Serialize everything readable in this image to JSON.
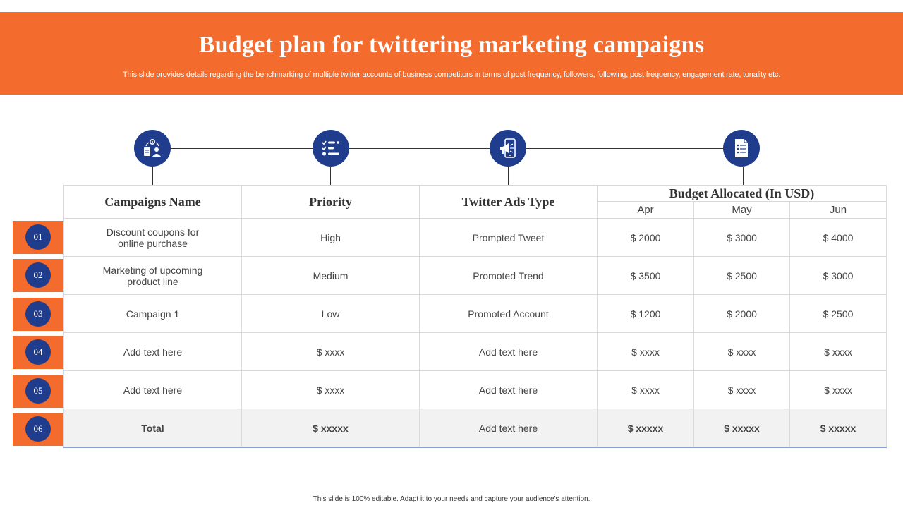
{
  "header": {
    "title": "Budget plan for twittering marketing campaigns",
    "subtitle": "This slide provides details regarding the benchmarking of multiple twitter accounts of business competitors in terms of post frequency, followers, following, post frequency, engagement rate, tonality etc."
  },
  "icons": [
    "team-gear-icon",
    "checklist-icon",
    "mobile-megaphone-icon",
    "document-list-icon"
  ],
  "table": {
    "headers": {
      "campaign": "Campaigns Name",
      "priority": "Priority",
      "ads_type": "Twitter Ads Type",
      "budget": "Budget Allocated (In USD)",
      "months": [
        "Apr",
        "May",
        "Jun"
      ]
    },
    "rows": [
      {
        "num": "01",
        "campaign_line1": "Discount coupons for",
        "campaign_line2": "online purchase",
        "priority": "High",
        "ads_type": "Prompted Tweet",
        "apr": "$ 2000",
        "may": "$ 3000",
        "jun": "$ 4000"
      },
      {
        "num": "02",
        "campaign_line1": "Marketing  of upcoming",
        "campaign_line2": "product line",
        "priority": "Medium",
        "ads_type": "Promoted Trend",
        "apr": "$ 3500",
        "may": "$ 2500",
        "jun": "$ 3000"
      },
      {
        "num": "03",
        "campaign_line1": "Campaign 1",
        "campaign_line2": "",
        "priority": "Low",
        "ads_type": "Promoted Account",
        "apr": "$ 1200",
        "may": "$ 2000",
        "jun": "$ 2500"
      },
      {
        "num": "04",
        "campaign_line1": "Add text here",
        "campaign_line2": "",
        "priority": "$ xxxx",
        "ads_type": "Add text here",
        "apr": "$ xxxx",
        "may": "$ xxxx",
        "jun": "$ xxxx"
      },
      {
        "num": "05",
        "campaign_line1": "Add text here",
        "campaign_line2": "",
        "priority": "$ xxxx",
        "ads_type": "Add text here",
        "apr": "$ xxxx",
        "may": "$ xxxx",
        "jun": "$ xxxx"
      }
    ],
    "total": {
      "num": "06",
      "label": "Total",
      "priority": "$ xxxxx",
      "ads_type": "Add text here",
      "apr": "$ xxxxx",
      "may": "$ xxxxx",
      "jun": "$ xxxxx"
    }
  },
  "colors": {
    "accent": "#f36c2e",
    "navy": "#1f3d8c"
  },
  "footer": {
    "text": "This slide is 100% editable. Adapt it to your needs and capture your audience's attention."
  }
}
